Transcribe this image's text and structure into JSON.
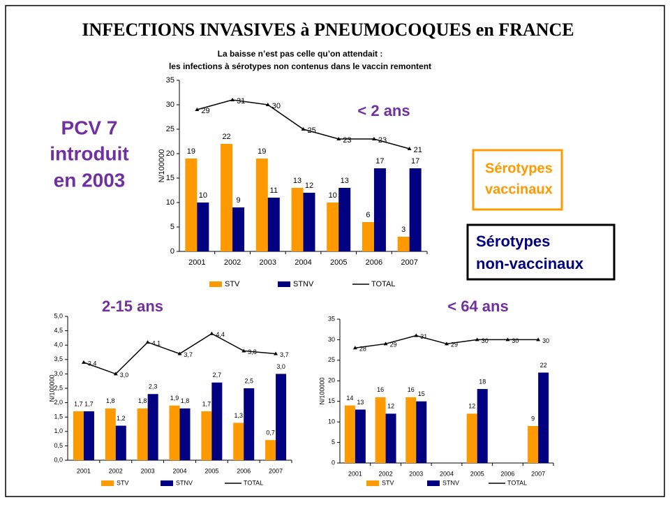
{
  "title": "INFECTIONS INVASIVES à PNEUMOCOQUES en FRANCE",
  "vaccine_note": [
    "PCV 7",
    "introduit",
    "en 2003"
  ],
  "legend_boxes": [
    [
      "Sérotypes",
      "vaccinaux"
    ],
    [
      "Sérotypes",
      "non-vaccinaux"
    ]
  ],
  "chart_data": [
    {
      "type": "bar",
      "title": [
        "La baisse n’est pas celle qu’on attendait :",
        "les infections à sérotypes non contenus dans le vaccin remontent"
      ],
      "label": "< 2 ans",
      "ylabel": "N/100000",
      "categories": [
        "2001",
        "2002",
        "2003",
        "2004",
        "2005",
        "2006",
        "2007"
      ],
      "ylim": [
        0,
        35
      ],
      "yticks": [
        0,
        5,
        10,
        15,
        20,
        25,
        30,
        35
      ],
      "series": [
        {
          "name": "STV",
          "type": "bar",
          "color": "#ff9900",
          "values": [
            19,
            22,
            19,
            13,
            10,
            6,
            3
          ]
        },
        {
          "name": "STNV",
          "type": "bar",
          "color": "#000080",
          "values": [
            10,
            9,
            11,
            12,
            13,
            17,
            17
          ]
        },
        {
          "name": "TOTAL",
          "type": "line",
          "color": "#000000",
          "values": [
            29,
            31,
            30,
            25,
            23,
            23,
            21
          ]
        }
      ]
    },
    {
      "type": "bar",
      "label": "2-15 ans",
      "ylabel": "N/100000",
      "categories": [
        "2001",
        "2002",
        "2003",
        "2004",
        "2005",
        "2006",
        "2007"
      ],
      "ylim": [
        0,
        5
      ],
      "yticks": [
        {
          "value": 0,
          "label": "0,0"
        },
        {
          "value": 0.5,
          "label": "0,5"
        },
        {
          "value": 1,
          "label": "1,0"
        },
        {
          "value": 1.5,
          "label": "1,5"
        },
        {
          "value": 2,
          "label": "2,0"
        },
        {
          "value": 2.5,
          "label": "2,5"
        },
        {
          "value": 3,
          "label": "3,0"
        },
        {
          "value": 3.5,
          "label": "3,5"
        },
        {
          "value": 4,
          "label": "4,0"
        },
        {
          "value": 4.5,
          "label": "4,5"
        },
        {
          "value": 5,
          "label": "5,0"
        }
      ],
      "series": [
        {
          "name": "STV",
          "type": "bar",
          "color": "#ff9900",
          "values": [
            1.7,
            1.8,
            1.8,
            1.9,
            1.7,
            1.3,
            0.7
          ],
          "value_labels": [
            "1,7",
            "1,8",
            "1,8",
            "1,9",
            "1,7",
            "1,3",
            "0,7"
          ]
        },
        {
          "name": "STNV",
          "type": "bar",
          "color": "#000080",
          "values": [
            1.7,
            1.2,
            2.3,
            1.8,
            2.7,
            2.5,
            3.0
          ],
          "value_labels": [
            "1,7",
            "1,2",
            "2,3",
            "1,8",
            "2,7",
            "2,5",
            "3,0"
          ]
        },
        {
          "name": "TOTAL",
          "type": "line",
          "color": "#000000",
          "values": [
            3.4,
            3.0,
            4.1,
            3.7,
            4.4,
            3.8,
            3.7
          ],
          "value_labels": [
            "3,4",
            "3,0",
            "4,1",
            "3,7",
            "4,4",
            "3,8",
            "3,7"
          ]
        }
      ]
    },
    {
      "type": "bar",
      "label": "< 64 ans",
      "ylabel": "N/100000",
      "categories": [
        "2001",
        "2002",
        "2003",
        "2004",
        "2005",
        "2006",
        "2007"
      ],
      "ylim": [
        0,
        35
      ],
      "yticks": [
        0,
        5,
        10,
        15,
        20,
        25,
        30,
        35
      ],
      "series": [
        {
          "name": "STV",
          "type": "bar",
          "color": "#ff9900",
          "values": [
            14,
            16,
            16,
            null,
            12,
            null,
            9
          ]
        },
        {
          "name": "STNV",
          "type": "bar",
          "color": "#000080",
          "values": [
            13,
            12,
            15,
            null,
            18,
            null,
            22
          ]
        },
        {
          "name": "TOTAL",
          "type": "line",
          "color": "#000000",
          "values": [
            28,
            29,
            31,
            29,
            30,
            30,
            30
          ]
        }
      ]
    }
  ]
}
